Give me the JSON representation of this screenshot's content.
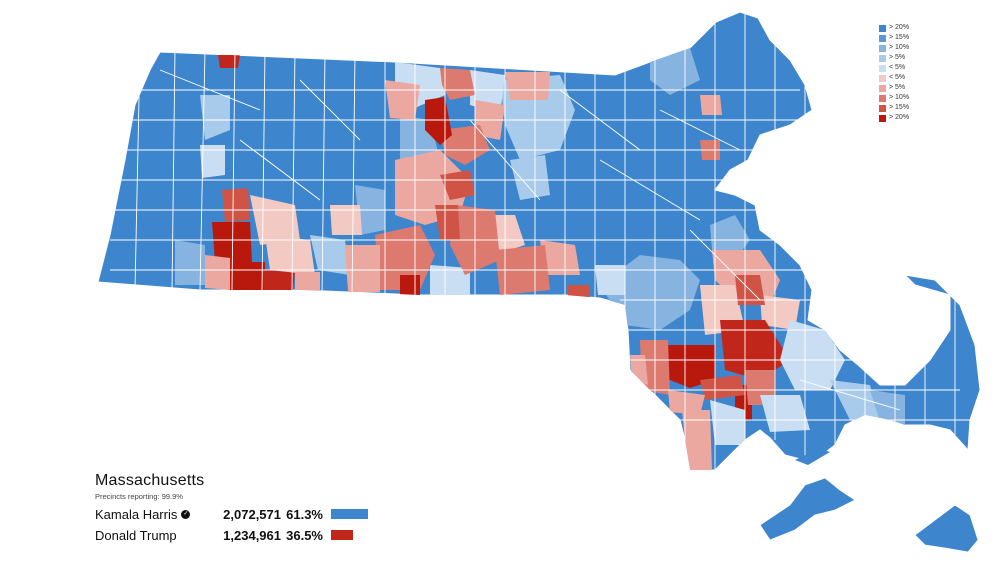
{
  "state": {
    "name": "Massachusetts",
    "precincts_reporting": "Precincts reporting: 99.9%"
  },
  "candidates": [
    {
      "name": "Kamala Harris",
      "winner": true,
      "votes": "2,072,571",
      "pct": "61.3%",
      "color": "#3d85cc",
      "share": 0.613
    },
    {
      "name": "Donald Trump",
      "winner": false,
      "votes": "1,234,961",
      "pct": "36.5%",
      "color": "#c0271a",
      "share": 0.365
    }
  ],
  "legend": [
    {
      "label": "> 20%",
      "color": "#3d85cc"
    },
    {
      "label": "> 15%",
      "color": "#5a98d6"
    },
    {
      "label": "> 10%",
      "color": "#86b3e0"
    },
    {
      "label": "> 5%",
      "color": "#a9cbeb"
    },
    {
      "label": "< 5%",
      "color": "#c9def2"
    },
    {
      "label": "< 5%",
      "color": "#f3c9c4"
    },
    {
      "label": "> 5%",
      "color": "#eaa8a1"
    },
    {
      "label": "> 10%",
      "color": "#dd7a6f"
    },
    {
      "label": "> 15%",
      "color": "#cf5446"
    },
    {
      "label": "> 20%",
      "color": "#b8190c"
    }
  ],
  "map": {
    "base_color": "#3d85cc",
    "border_color": "#ffffff",
    "region_tints": [
      {
        "region": "north-central-towns",
        "color": "#eaa8a1"
      },
      {
        "region": "north-central-towns-2",
        "color": "#dd7a6f"
      },
      {
        "region": "franklin-red",
        "color": "#b8190c"
      },
      {
        "region": "central-towns",
        "color": "#f3c9c4"
      },
      {
        "region": "worcester-red",
        "color": "#dd7a6f"
      },
      {
        "region": "hampden-red",
        "color": "#c0271a"
      },
      {
        "region": "hampden-light",
        "color": "#eaa8a1"
      },
      {
        "region": "southeast-towns",
        "color": "#cf5446"
      },
      {
        "region": "southeast-light",
        "color": "#eaa8a1"
      },
      {
        "region": "southeast-pale",
        "color": "#f3c9c4"
      },
      {
        "region": "plymouth-light-blue",
        "color": "#c9def2"
      },
      {
        "region": "cape-light-blue",
        "color": "#a9cbeb"
      },
      {
        "region": "metro-light-blue",
        "color": "#86b3e0"
      }
    ]
  }
}
